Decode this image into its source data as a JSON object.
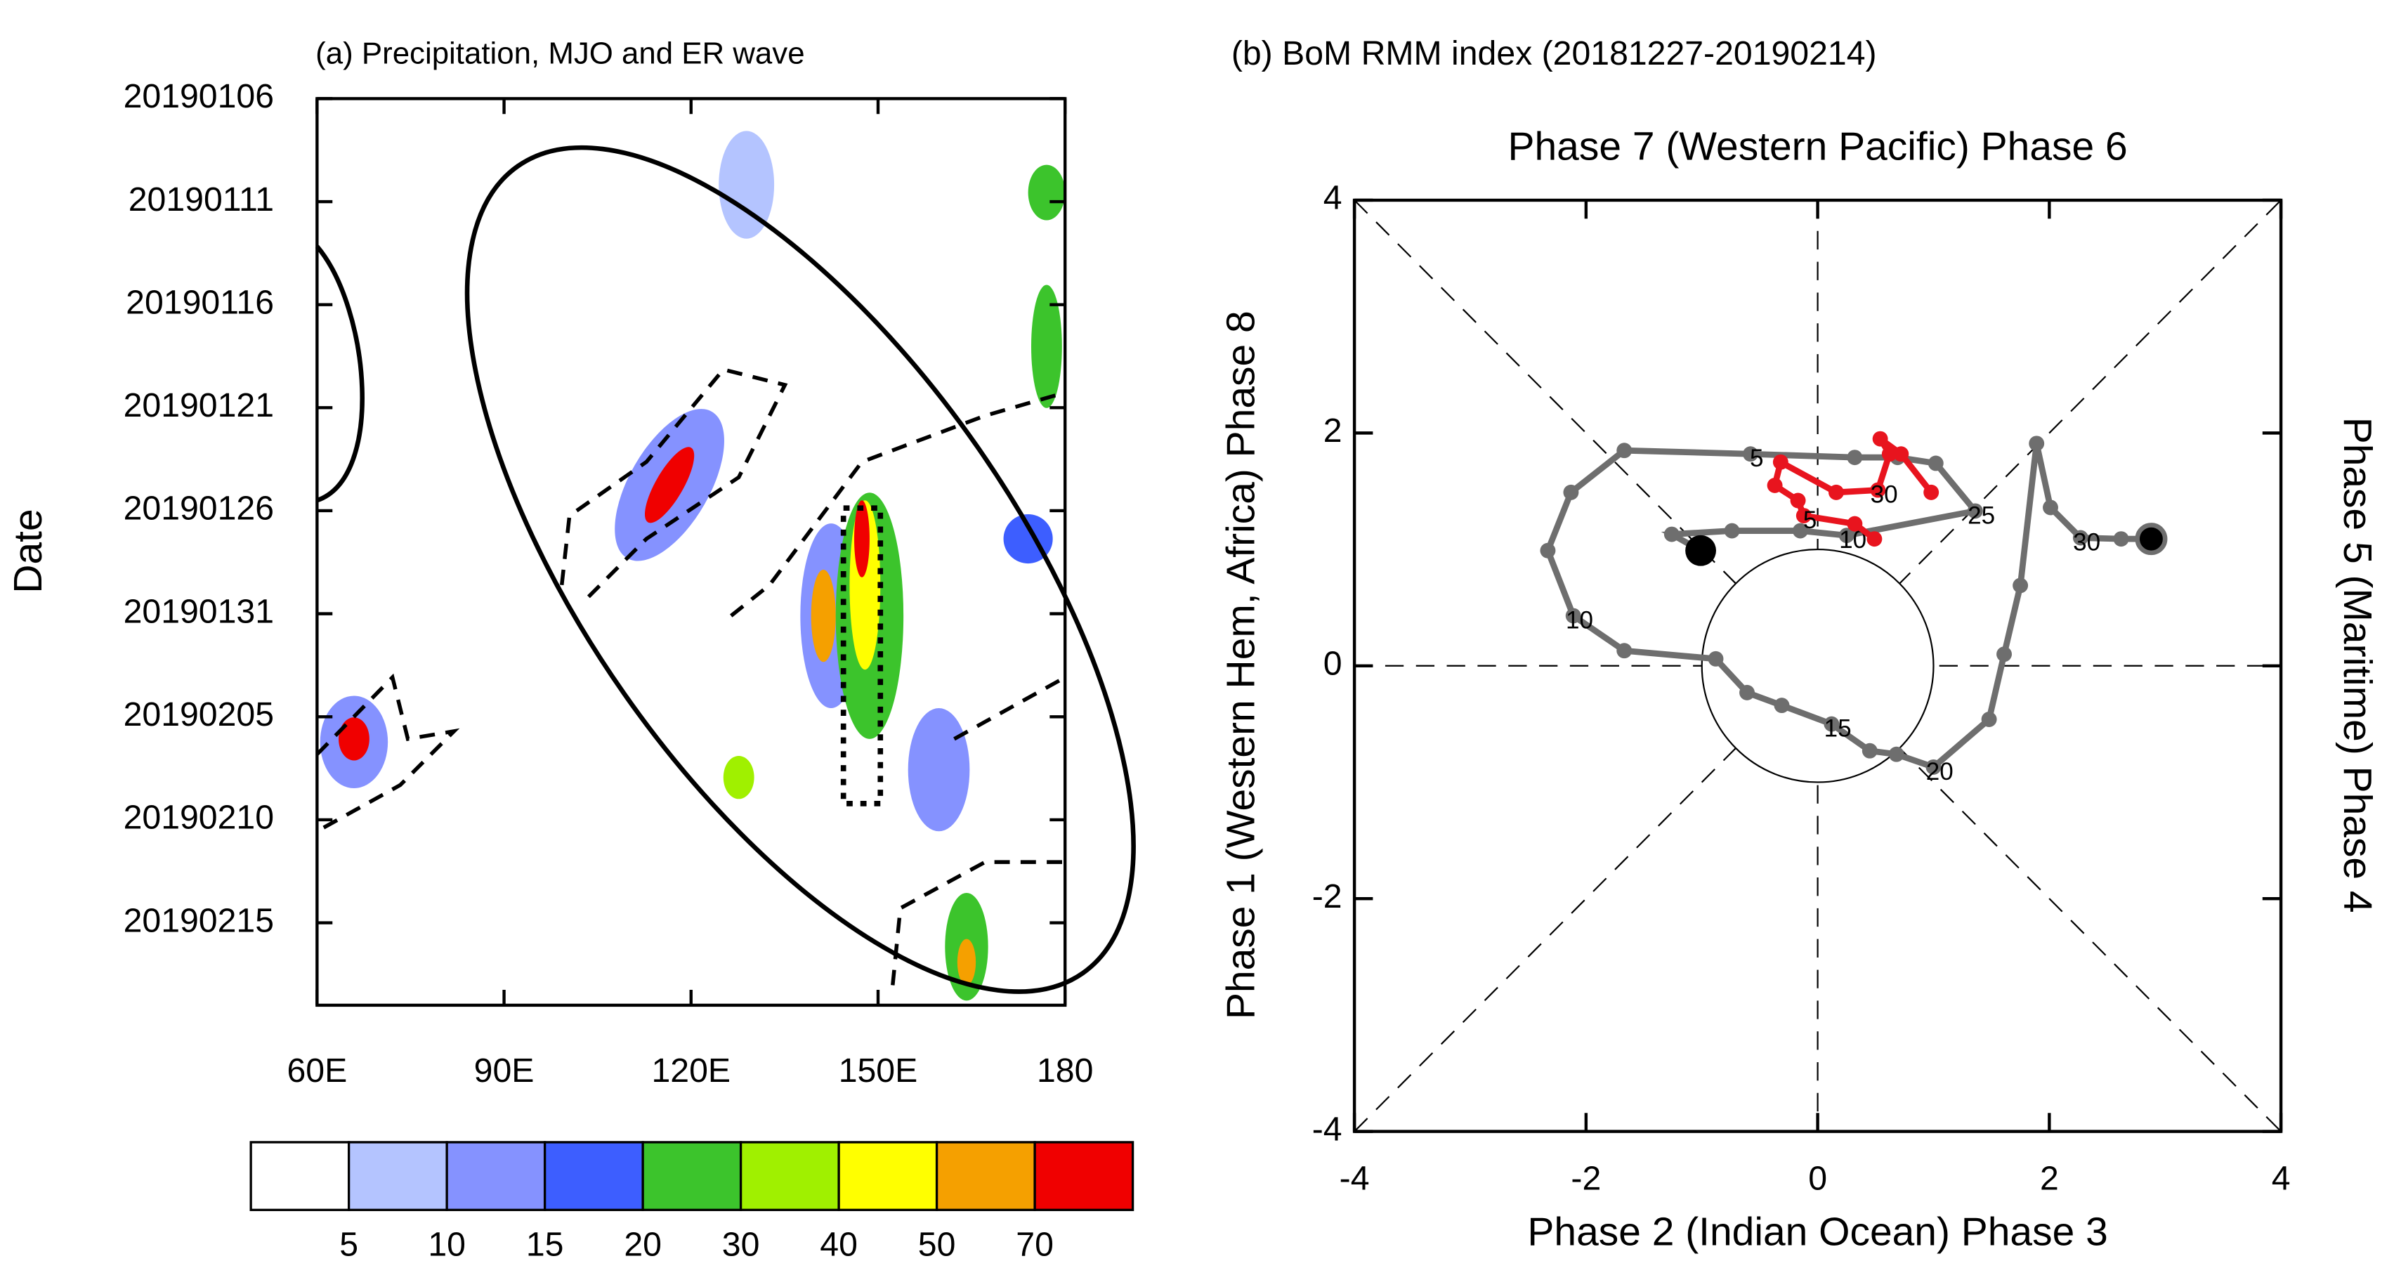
{
  "chart_data": [
    {
      "type": "hovmoller",
      "title": "(a) Precipitation, MJO and ER wave",
      "ylabel": "Date",
      "xlim": [
        60,
        180
      ],
      "xticks": [
        {
          "value": 60,
          "label": "60E"
        },
        {
          "value": 90,
          "label": "90E"
        },
        {
          "value": 120,
          "label": "120E"
        },
        {
          "value": 150,
          "label": "150E"
        },
        180
      ],
      "ylim": [
        "20190106",
        "20190219"
      ],
      "yticks": [
        "20190106",
        "20190111",
        "20190116",
        "20190121",
        "20190126",
        "20190131",
        "20190205",
        "20190210",
        "20190215"
      ],
      "levels": [
        5,
        10,
        15,
        20,
        30,
        40,
        50,
        70
      ],
      "colors": [
        "#ffffff",
        "#b4c4ff",
        "#8592ff",
        "#3d5eff",
        "#3cc42c",
        "#a0f000",
        "#ffff00",
        "#f5a000",
        "#f00000"
      ]
    },
    {
      "type": "phase",
      "title": "(b) BoM RMM index (20181227-20190214)",
      "top_label": "Phase 7 (Western Pacific) Phase 6",
      "xlabel": "Phase 2 (Indian Ocean) Phase 3",
      "ylabel": "Phase 1 (Western Hem, Africa) Phase 8",
      "right_label": "Phase 5 (Maritime) Phase 4",
      "xlim": [
        -4,
        4
      ],
      "ylim": [
        -4,
        4
      ],
      "xticks": [
        -4,
        -2,
        0,
        2,
        4
      ],
      "yticks": [
        -4,
        -2,
        0,
        2,
        4
      ],
      "series": [
        {
          "color": "#6e6e6e",
          "x": [
            2.88,
            2.62,
            2.27,
            2.01,
            1.89,
            1.75,
            1.61,
            1.48,
            1.0,
            0.68,
            0.45,
            0.12,
            -0.31,
            -0.61,
            -0.88,
            -1.67,
            -2.11,
            -2.33,
            -2.13,
            -1.67,
            -0.58,
            0.32,
            0.69,
            1.02,
            1.36,
            0.25,
            -0.15,
            -0.74,
            -1.26,
            -1.01
          ],
          "y": [
            1.09,
            1.09,
            1.1,
            1.36,
            1.91,
            0.69,
            0.1,
            -0.46,
            -0.87,
            -0.76,
            -0.73,
            -0.5,
            -0.34,
            -0.23,
            0.06,
            0.13,
            0.43,
            0.99,
            1.49,
            1.85,
            1.82,
            1.79,
            1.79,
            1.74,
            1.33,
            1.12,
            1.16,
            1.16,
            1.13,
            0.99
          ],
          "labels": [
            null,
            null,
            "30",
            null,
            null,
            null,
            null,
            null,
            "20",
            null,
            null,
            "15",
            null,
            null,
            null,
            null,
            "10",
            null,
            null,
            null,
            "5",
            null,
            null,
            null,
            "25",
            "10",
            null,
            null,
            null,
            null
          ]
        },
        {
          "color": "#e8141e",
          "x": [
            0.49,
            0.32,
            -0.12,
            -0.17,
            -0.37,
            -0.32,
            0.16,
            0.52,
            0.62,
            0.54,
            0.72,
            0.98
          ],
          "y": [
            1.09,
            1.22,
            1.29,
            1.42,
            1.55,
            1.75,
            1.49,
            1.51,
            1.82,
            1.95,
            1.82,
            1.49
          ],
          "labels": [
            null,
            null,
            "5",
            null,
            null,
            null,
            null,
            "30",
            null,
            null,
            null,
            null
          ]
        }
      ]
    }
  ]
}
